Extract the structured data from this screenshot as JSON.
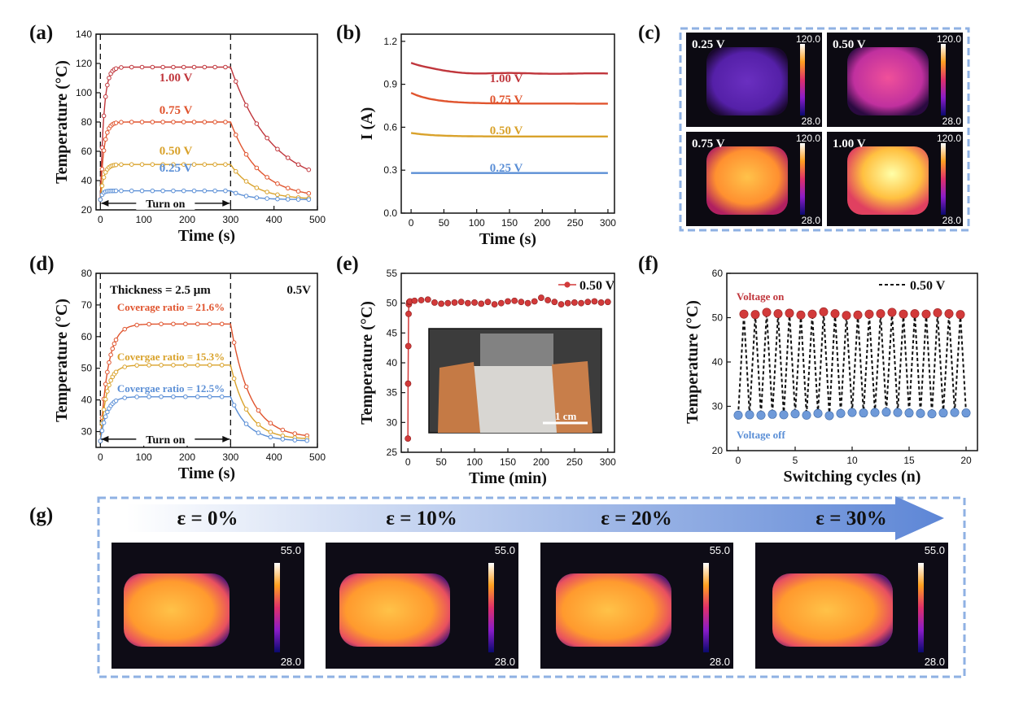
{
  "panels": {
    "a": "(a)",
    "b": "(b)",
    "c": "(c)",
    "d": "(d)",
    "e": "(e)",
    "f": "(f)",
    "g": "(g)"
  },
  "colors": {
    "c100": "#c0363c",
    "c075": "#e0542e",
    "c050": "#d9a22b",
    "c025": "#5b8fd6",
    "cov216": "#e0542e",
    "cov153": "#d9a22b",
    "cov125": "#5b8fd6",
    "red_ball": "#d23a3a",
    "blue_ball": "#6f9ad9",
    "frame": "#8fb1e3"
  },
  "chart_data": [
    {
      "id": "a",
      "type": "line",
      "xlabel": "Time (s)",
      "ylabel": "Temperature (°C)",
      "xlim": [
        -10,
        500
      ],
      "ylim": [
        20,
        140
      ],
      "xticks": [
        0,
        100,
        200,
        300,
        400,
        500
      ],
      "yticks": [
        20,
        40,
        60,
        80,
        100,
        120,
        140
      ],
      "vlines": [
        0,
        300
      ],
      "annotation": "Turn on",
      "series": [
        {
          "name": "1.00 V",
          "color": "c100",
          "T0": 27,
          "Tmax": 117.5,
          "tau_on": 8,
          "tau_off": 95,
          "Tend": 35
        },
        {
          "name": "0.75 V",
          "color": "c075",
          "T0": 27,
          "Tmax": 80,
          "tau_on": 8,
          "tau_off": 65,
          "Tend": 28
        },
        {
          "name": "0.50 V",
          "color": "c050",
          "T0": 27,
          "Tmax": 51,
          "tau_on": 8,
          "tau_off": 55,
          "Tend": 27
        },
        {
          "name": "0.25 V",
          "color": "c025",
          "T0": 27,
          "Tmax": 33,
          "tau_on": 5,
          "tau_off": 40,
          "Tend": 27
        }
      ]
    },
    {
      "id": "b",
      "type": "line",
      "xlabel": "Time (s)",
      "ylabel": "I (A)",
      "xlim": [
        -15,
        310
      ],
      "ylim": [
        0.0,
        1.25
      ],
      "xticks": [
        0,
        50,
        100,
        150,
        200,
        250,
        300
      ],
      "yticks": [
        0.0,
        0.3,
        0.6,
        0.9,
        1.2
      ],
      "ytick_labels": [
        "0.0",
        "0.3",
        "0.6",
        "0.9",
        "1.2"
      ],
      "series": [
        {
          "name": "1.00 V",
          "color": "c100",
          "I0": 1.05,
          "Iend": 0.975
        },
        {
          "name": "0.75 V",
          "color": "c075",
          "I0": 0.84,
          "Iend": 0.765
        },
        {
          "name": "0.50 V",
          "color": "c050",
          "I0": 0.56,
          "Iend": 0.535
        },
        {
          "name": "0.25 V",
          "color": "c025",
          "I0": 0.28,
          "Iend": 0.28
        }
      ]
    },
    {
      "id": "d",
      "type": "line",
      "xlabel": "Time (s)",
      "ylabel": "Temperature (°C)",
      "xlim": [
        -10,
        500
      ],
      "ylim": [
        25,
        80
      ],
      "xticks": [
        0,
        100,
        200,
        300,
        400,
        500
      ],
      "yticks": [
        30,
        40,
        50,
        60,
        70,
        80
      ],
      "vlines": [
        0,
        300
      ],
      "annotations": [
        "Thickness = 2.5 μm",
        "0.5V",
        "Turn on"
      ],
      "series": [
        {
          "name": "Coverage ratio = 21.6%",
          "color": "cov216",
          "T0": 27,
          "Tmax": 64,
          "tau_on": 18,
          "tau_off": 45,
          "Tend": 28
        },
        {
          "name": "Covergae ratio = 15.3%",
          "color": "cov153",
          "T0": 27,
          "Tmax": 51,
          "tau_on": 15,
          "tau_off": 40,
          "Tend": 27.5
        },
        {
          "name": "Covergae ratio = 12.5%",
          "color": "cov125",
          "T0": 27,
          "Tmax": 41,
          "tau_on": 15,
          "tau_off": 38,
          "Tend": 27
        }
      ]
    },
    {
      "id": "e",
      "type": "scatter",
      "xlabel": "Time (min)",
      "ylabel": "Temperature (°C)",
      "xlim": [
        -10,
        310
      ],
      "ylim": [
        25,
        55
      ],
      "xticks": [
        0,
        50,
        100,
        150,
        200,
        250,
        300
      ],
      "yticks": [
        25,
        30,
        35,
        40,
        45,
        50,
        55
      ],
      "legend": "0.50 V",
      "inset_scale": "1 cm",
      "x": [
        0,
        0.3,
        0.6,
        1,
        1.5,
        2,
        3,
        10,
        20,
        30,
        40,
        50,
        60,
        70,
        80,
        90,
        100,
        110,
        120,
        130,
        140,
        150,
        160,
        170,
        180,
        190,
        200,
        210,
        220,
        230,
        240,
        250,
        260,
        270,
        280,
        290,
        300
      ],
      "y": [
        27.3,
        36.5,
        42.8,
        48.2,
        49.8,
        50.2,
        50.3,
        50.4,
        50.5,
        50.6,
        50.1,
        49.9,
        50.0,
        50.1,
        50.2,
        50.0,
        50.1,
        49.9,
        50.2,
        49.8,
        50.0,
        50.3,
        50.4,
        50.2,
        50.0,
        50.3,
        50.9,
        50.5,
        50.2,
        49.8,
        50.0,
        50.1,
        50.0,
        50.2,
        50.3,
        50.1,
        50.2
      ]
    },
    {
      "id": "f",
      "type": "line",
      "xlabel": "Switching cycles (n)",
      "ylabel": "Temperature (°C)",
      "xlim": [
        -1,
        21
      ],
      "ylim": [
        20,
        60
      ],
      "xticks": [
        0,
        5,
        10,
        15,
        20
      ],
      "yticks": [
        20,
        30,
        40,
        50,
        60
      ],
      "legend": "0.50 V",
      "label_on": "Voltage on",
      "label_off": "Voltage off",
      "on_x": [
        0.5,
        1.5,
        2.5,
        3.5,
        4.5,
        5.5,
        6.5,
        7.5,
        8.5,
        9.5,
        10.5,
        11.5,
        12.5,
        13.5,
        14.5,
        15.5,
        16.5,
        17.5,
        18.5,
        19.5
      ],
      "on_y": [
        50.8,
        50.7,
        51.2,
        50.9,
        51.0,
        50.6,
        50.8,
        51.3,
        50.9,
        50.5,
        50.6,
        50.8,
        50.9,
        51.2,
        50.8,
        50.9,
        50.8,
        51.1,
        50.9,
        50.7
      ],
      "off_x": [
        0,
        1,
        2,
        3,
        4,
        5,
        6,
        7,
        8,
        9,
        10,
        11,
        12,
        13,
        14,
        15,
        16,
        17,
        18,
        19,
        20
      ],
      "off_y": [
        28.0,
        28.1,
        28.0,
        28.2,
        28.1,
        28.3,
        28.0,
        28.4,
        27.9,
        28.4,
        28.6,
        28.5,
        28.6,
        28.7,
        28.6,
        28.5,
        28.4,
        28.3,
        28.5,
        28.6,
        28.5
      ]
    }
  ],
  "thermal_c": [
    {
      "label": "0.25 V",
      "max": "120.0",
      "min": "28.0",
      "level": 0.12
    },
    {
      "label": "0.50 V",
      "max": "120.0",
      "min": "28.0",
      "level": 0.32
    },
    {
      "label": "0.75 V",
      "max": "120.0",
      "min": "28.0",
      "level": 0.62
    },
    {
      "label": "1.00 V",
      "max": "120.0",
      "min": "28.0",
      "level": 0.82
    }
  ],
  "thermal_g": [
    {
      "label": "ε = 0%",
      "max": "55.0",
      "min": "28.0"
    },
    {
      "label": "ε = 10%",
      "max": "55.0",
      "min": "28.0"
    },
    {
      "label": "ε = 20%",
      "max": "55.0",
      "min": "28.0"
    },
    {
      "label": "ε = 30%",
      "max": "55.0",
      "min": "28.0"
    }
  ]
}
